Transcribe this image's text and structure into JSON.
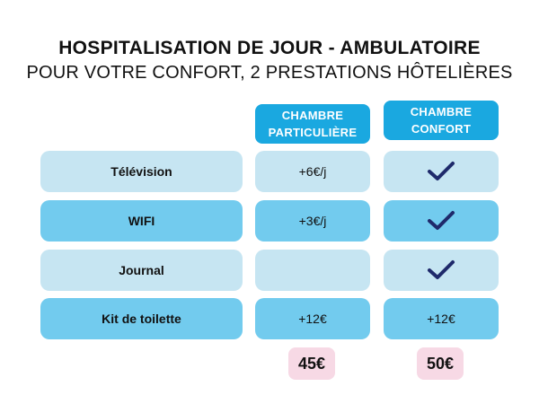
{
  "header": {
    "title": "HOSPITALISATION DE JOUR - AMBULATOIRE",
    "subtitle": "POUR VOTRE CONFORT, 2 PRESTATIONS HÔTELIÈRES"
  },
  "columns": {
    "particuliere": {
      "line1": "CHAMBRE",
      "line2": "PARTICULIÈRE"
    },
    "confort": {
      "line1": "CHAMBRE",
      "line2": "CONFORT"
    }
  },
  "rows": [
    {
      "label": "Télévision",
      "particuliere": "+6€/j",
      "confort": "check"
    },
    {
      "label": "WIFI",
      "particuliere": "+3€/j",
      "confort": "check"
    },
    {
      "label": "Journal",
      "particuliere": "",
      "confort": "check"
    },
    {
      "label": "Kit de toilette",
      "particuliere": "+12€",
      "confort": "+12€"
    }
  ],
  "prices": {
    "particuliere": "45€",
    "confort": "50€"
  },
  "colors": {
    "header_blue": "#1aa8e0",
    "row_light": "#c6e5f2",
    "row_dark": "#72cbee",
    "check": "#1f2a6b",
    "price_bg": "#f7d9e5"
  }
}
